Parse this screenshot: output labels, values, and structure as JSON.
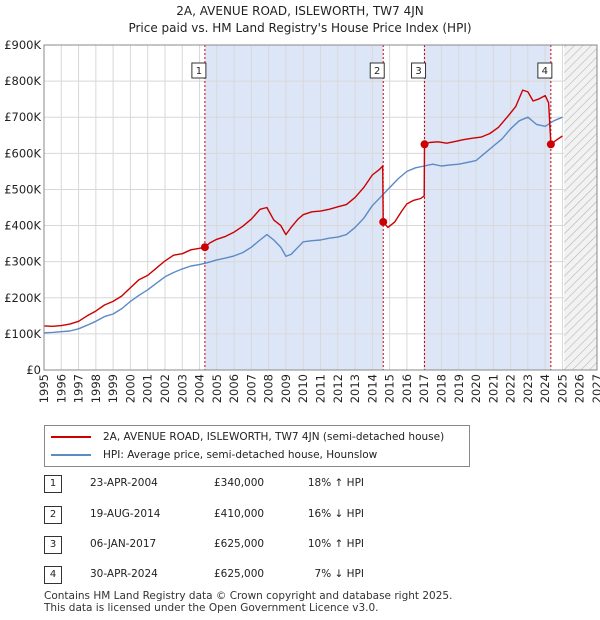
{
  "header": {
    "title_line1": "2A, AVENUE ROAD, ISLEWORTH, TW7 4JN",
    "title_line2": "Price paid vs. HM Land Registry's House Price Index (HPI)"
  },
  "colors": {
    "property": "#cc0000",
    "hpi": "#5b8ac6",
    "shade": "#dde6f7",
    "marker_line": "#cc0000",
    "grid": "#d8d8d8"
  },
  "legend": {
    "property_label": "2A, AVENUE ROAD, ISLEWORTH, TW7 4JN (semi-detached house)",
    "hpi_label": "HPI: Average price, semi-detached house, Hounslow"
  },
  "transactions": [
    {
      "num": "1",
      "date": "23-APR-2004",
      "price": "£340,000",
      "hpi": "18% ↑ HPI"
    },
    {
      "num": "2",
      "date": "19-AUG-2014",
      "price": "£410,000",
      "hpi": "16% ↓ HPI"
    },
    {
      "num": "3",
      "date": "06-JAN-2017",
      "price": "£625,000",
      "hpi": "10% ↑ HPI"
    },
    {
      "num": "4",
      "date": "30-APR-2024",
      "price": "£625,000",
      "hpi": "7% ↓ HPI"
    }
  ],
  "footer": {
    "line1": "Contains HM Land Registry data © Crown copyright and database right 2025.",
    "line2": "This data is licensed under the Open Government Licence v3.0."
  },
  "chart_data": {
    "type": "line",
    "title": "Price paid vs. HM Land Registry's House Price Index (HPI)",
    "xlabel": "",
    "ylabel": "",
    "xlim": [
      1995,
      2027
    ],
    "ylim": [
      0,
      900000
    ],
    "x_ticks": [
      "1995",
      "1996",
      "1997",
      "1998",
      "1999",
      "2000",
      "2001",
      "2002",
      "2003",
      "2004",
      "2005",
      "2006",
      "2007",
      "2008",
      "2009",
      "2010",
      "2011",
      "2012",
      "2013",
      "2014",
      "2015",
      "2016",
      "2017",
      "2018",
      "2019",
      "2020",
      "2021",
      "2022",
      "2023",
      "2024",
      "2025",
      "2026",
      "2027"
    ],
    "y_ticks": [
      {
        "value": 0,
        "label": "£0"
      },
      {
        "value": 100000,
        "label": "£100K"
      },
      {
        "value": 200000,
        "label": "£200K"
      },
      {
        "value": 300000,
        "label": "£300K"
      },
      {
        "value": 400000,
        "label": "£400K"
      },
      {
        "value": 500000,
        "label": "£500K"
      },
      {
        "value": 600000,
        "label": "£600K"
      },
      {
        "value": 700000,
        "label": "£700K"
      },
      {
        "value": 800000,
        "label": "£800K"
      },
      {
        "value": 900000,
        "label": "£900K"
      }
    ],
    "shaded_periods": [
      [
        2004.31,
        2014.63
      ],
      [
        2017.02,
        2024.33
      ]
    ],
    "future_hatch_from": 2025.1,
    "sales": [
      {
        "label": "1",
        "x": 2004.31,
        "y": 340000
      },
      {
        "label": "2",
        "x": 2014.63,
        "y": 410000
      },
      {
        "label": "3",
        "x": 2017.02,
        "y": 625000
      },
      {
        "label": "4",
        "x": 2024.33,
        "y": 625000
      }
    ],
    "series": [
      {
        "name": "2A, AVENUE ROAD, ISLEWORTH, TW7 4JN (semi-detached house)",
        "x": [
          1995.0,
          1995.5,
          1996.0,
          1996.5,
          1997.0,
          1997.5,
          1998.0,
          1998.5,
          1999.0,
          1999.5,
          2000.0,
          2000.5,
          2001.0,
          2001.5,
          2002.0,
          2002.5,
          2003.0,
          2003.5,
          2004.0,
          2004.31,
          2004.6,
          2005.0,
          2005.5,
          2006.0,
          2006.5,
          2007.0,
          2007.5,
          2007.9,
          2008.3,
          2008.7,
          2009.0,
          2009.3,
          2009.7,
          2010.0,
          2010.5,
          2011.0,
          2011.5,
          2012.0,
          2012.5,
          2013.0,
          2013.5,
          2014.0,
          2014.4,
          2014.6,
          2014.63,
          2014.9,
          2015.3,
          2015.7,
          2016.0,
          2016.4,
          2016.8,
          2017.0,
          2017.02,
          2017.3,
          2017.8,
          2018.3,
          2018.8,
          2019.3,
          2019.8,
          2020.3,
          2020.8,
          2021.3,
          2021.8,
          2022.3,
          2022.7,
          2023.0,
          2023.3,
          2023.6,
          2024.0,
          2024.2,
          2024.33,
          2024.6,
          2025.0
        ],
        "values": [
          122000,
          121000,
          123000,
          127000,
          135000,
          150000,
          163000,
          180000,
          190000,
          205000,
          228000,
          250000,
          262000,
          282000,
          302000,
          318000,
          322000,
          333000,
          337000,
          340000,
          352000,
          362000,
          370000,
          382000,
          398000,
          418000,
          445000,
          450000,
          415000,
          400000,
          375000,
          395000,
          418000,
          430000,
          438000,
          440000,
          445000,
          452000,
          458000,
          478000,
          505000,
          540000,
          555000,
          565000,
          410000,
          395000,
          410000,
          440000,
          460000,
          470000,
          475000,
          482000,
          625000,
          630000,
          632000,
          628000,
          633000,
          638000,
          642000,
          645000,
          655000,
          672000,
          700000,
          730000,
          775000,
          770000,
          745000,
          750000,
          760000,
          740000,
          625000,
          635000,
          648000
        ]
      },
      {
        "name": "HPI: Average price, semi-detached house, Hounslow",
        "x": [
          1995.0,
          1995.5,
          1996.0,
          1996.5,
          1997.0,
          1997.5,
          1998.0,
          1998.5,
          1999.0,
          1999.5,
          2000.0,
          2000.5,
          2001.0,
          2001.5,
          2002.0,
          2002.5,
          2003.0,
          2003.5,
          2004.0,
          2004.5,
          2005.0,
          2005.5,
          2006.0,
          2006.5,
          2007.0,
          2007.5,
          2007.9,
          2008.3,
          2008.7,
          2009.0,
          2009.3,
          2009.7,
          2010.0,
          2010.5,
          2011.0,
          2011.5,
          2012.0,
          2012.5,
          2013.0,
          2013.5,
          2014.0,
          2014.5,
          2015.0,
          2015.5,
          2016.0,
          2016.5,
          2017.0,
          2017.5,
          2018.0,
          2018.5,
          2019.0,
          2019.5,
          2020.0,
          2020.5,
          2021.0,
          2021.5,
          2022.0,
          2022.5,
          2023.0,
          2023.5,
          2024.0,
          2024.5,
          2025.0
        ],
        "values": [
          103000,
          104000,
          106000,
          108000,
          114000,
          124000,
          135000,
          148000,
          155000,
          170000,
          190000,
          207000,
          222000,
          240000,
          258000,
          270000,
          280000,
          288000,
          292000,
          298000,
          305000,
          310000,
          316000,
          325000,
          340000,
          360000,
          375000,
          360000,
          340000,
          315000,
          320000,
          340000,
          355000,
          358000,
          360000,
          365000,
          368000,
          375000,
          395000,
          420000,
          455000,
          480000,
          505000,
          530000,
          550000,
          560000,
          565000,
          570000,
          565000,
          568000,
          570000,
          575000,
          580000,
          600000,
          620000,
          640000,
          668000,
          690000,
          700000,
          680000,
          675000,
          690000,
          700000
        ]
      }
    ]
  }
}
